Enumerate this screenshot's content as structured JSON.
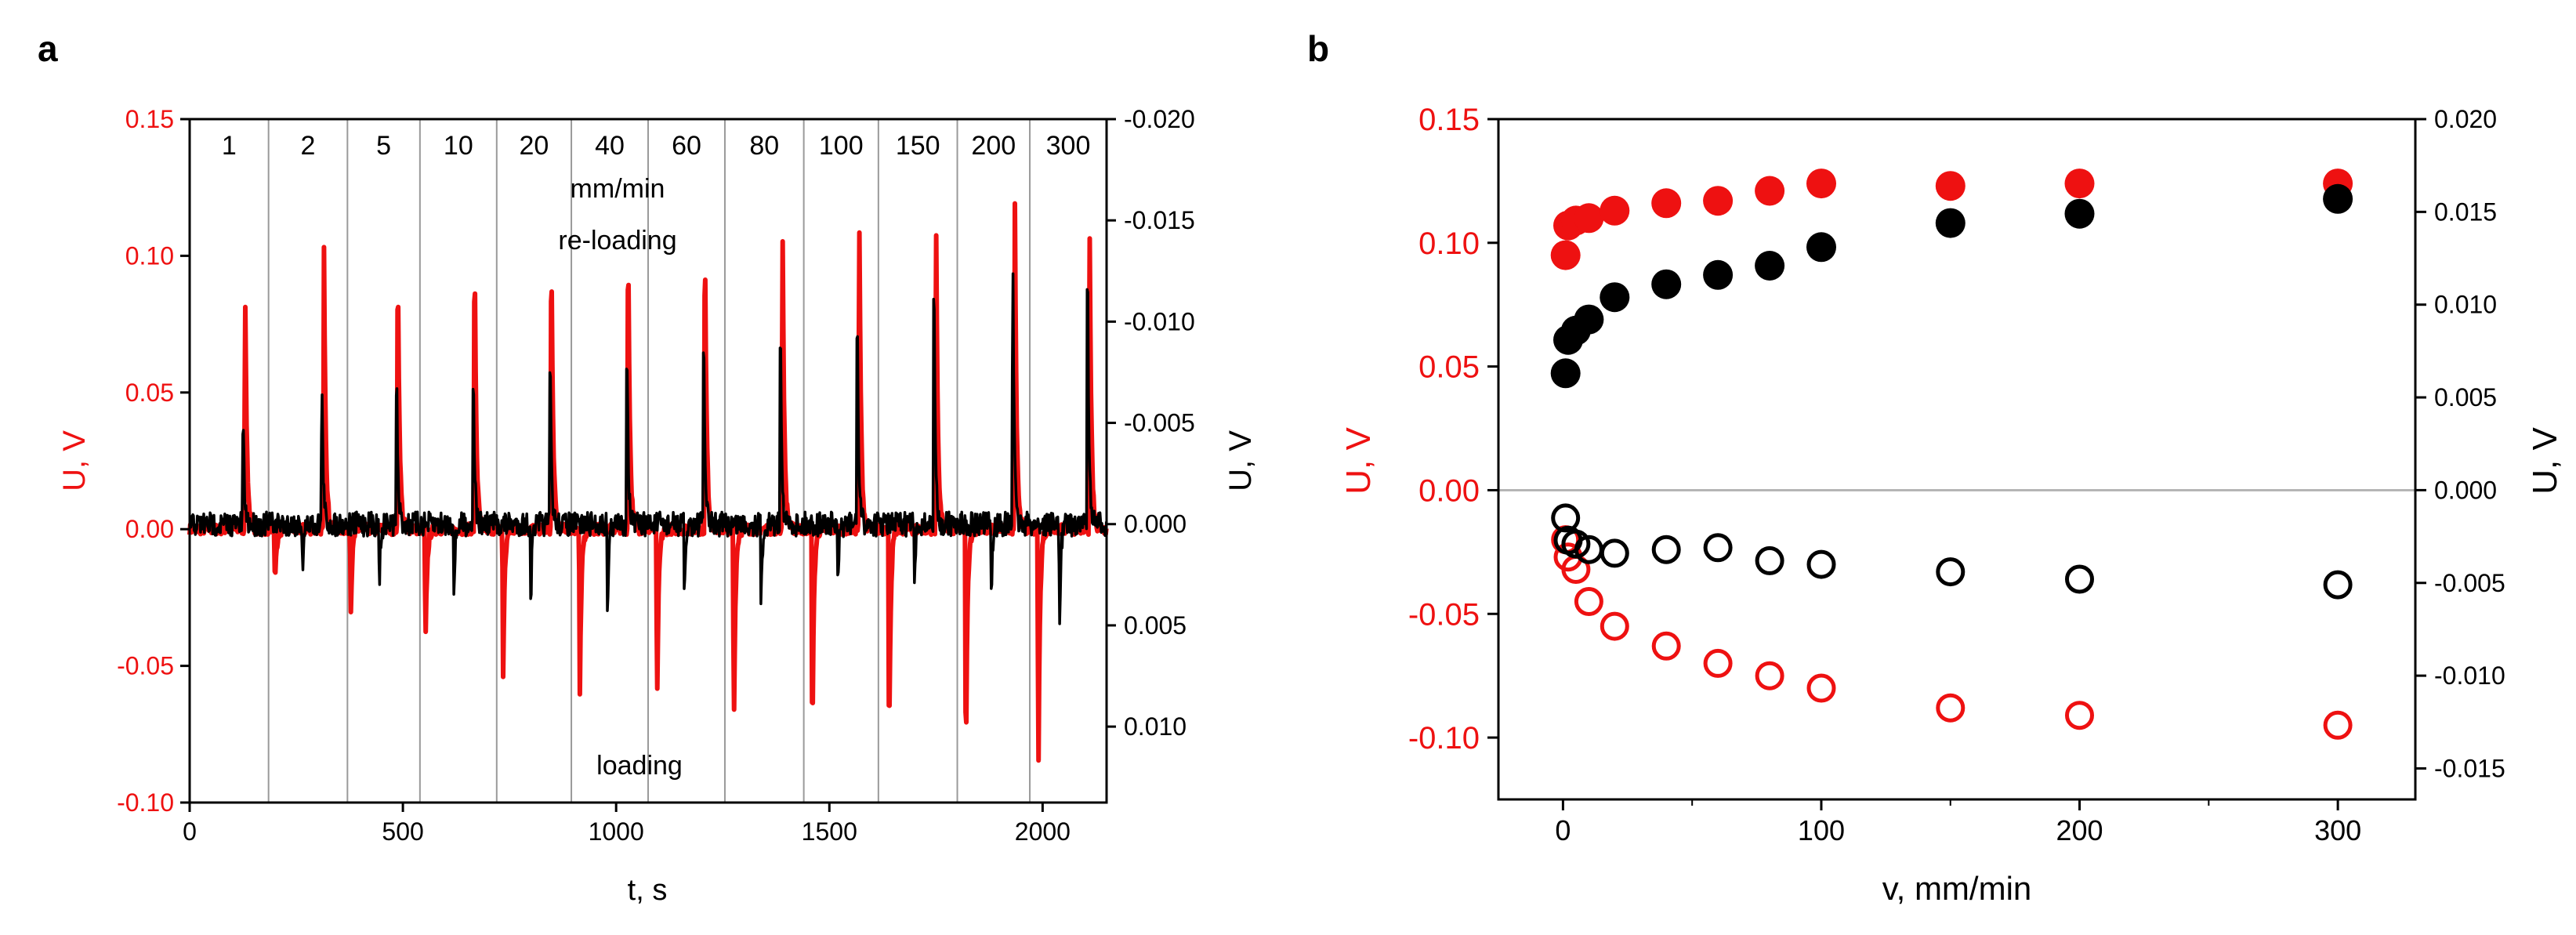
{
  "panels": {
    "a_label": "a",
    "b_label": "b"
  },
  "colors": {
    "red": "#ee1111",
    "black": "#000000",
    "divider": "#9a9a9a",
    "zero_line": "#b5b5b5"
  },
  "chart_data": [
    {
      "type": "line",
      "panel": "a",
      "xlabel": "t, s",
      "ylabel": "U, V",
      "y2label": "U, V",
      "xlim": [
        0,
        2150
      ],
      "ylim": [
        -0.1,
        0.15
      ],
      "y2lim": [
        0.01375,
        -0.02
      ],
      "x_ticks": [
        "0",
        "500",
        "1000",
        "1500",
        "2000"
      ],
      "y_ticks": [
        "-0.10",
        "-0.05",
        "0.00",
        "0.05",
        "0.10",
        "0.15"
      ],
      "y2_ticks": [
        "0.010",
        "0.005",
        "0.000",
        "-0.005",
        "-0.010",
        "-0.015",
        "-0.020"
      ],
      "speed_labels": [
        "1",
        "2",
        "5",
        "10",
        "20",
        "40",
        "60",
        "80",
        "100",
        "150",
        "200",
        "300"
      ],
      "divider_times": [
        185,
        370,
        540,
        720,
        895,
        1075,
        1255,
        1440,
        1615,
        1800,
        1970
      ],
      "annotations": {
        "unit": "mm/min",
        "reloading": "re-loading",
        "loading": "loading"
      },
      "series": [
        {
          "color": "red",
          "axis": "left",
          "peak_times": [
            130,
            315,
            488,
            668,
            848,
            1028,
            1208,
            1390,
            1570,
            1750,
            1935,
            2110
          ],
          "peak_values": [
            0.094,
            0.105,
            0.106,
            0.109,
            0.111,
            0.115,
            0.116,
            0.119,
            0.122,
            0.122,
            0.121,
            0.121
          ],
          "trough_times": [
            200,
            378,
            553,
            735,
            915,
            1096,
            1276,
            1460,
            1640,
            1820,
            1990
          ],
          "trough_values": [
            -0.022,
            -0.03,
            -0.045,
            -0.054,
            -0.062,
            -0.069,
            -0.076,
            -0.082,
            -0.087,
            -0.091,
            -0.095
          ]
        },
        {
          "color": "black",
          "axis": "right",
          "peak_times": [
            125,
            310,
            485,
            665,
            845,
            1025,
            1205,
            1385,
            1565,
            1745,
            1930,
            2105
          ],
          "peak_values": [
            -0.0061,
            -0.008,
            -0.0087,
            -0.0093,
            -0.0101,
            -0.011,
            -0.0115,
            -0.0123,
            -0.0129,
            -0.0143,
            -0.0151,
            -0.0159
          ],
          "trough_times": [
            265,
            445,
            620,
            800,
            980,
            1160,
            1340,
            1520,
            1700,
            1880,
            2040
          ],
          "trough_values": [
            0.0025,
            0.003,
            0.004,
            0.0045,
            0.005,
            0.0045,
            0.0045,
            0.004,
            0.0035,
            0.004,
            0.0055
          ]
        }
      ]
    },
    {
      "type": "scatter",
      "panel": "b",
      "xlabel": "v, mm/min",
      "ylabel": "U, V",
      "y2label": "U, V",
      "xlim": [
        -25,
        330
      ],
      "ylim": [
        -0.125,
        0.15
      ],
      "y2lim": [
        -0.01667,
        0.02
      ],
      "x_ticks": [
        "0",
        "100",
        "200",
        "300"
      ],
      "y_ticks": [
        "-0.10",
        "-0.05",
        "0.00",
        "0.05",
        "0.10",
        "0.15"
      ],
      "y2_ticks": [
        "-0.015",
        "-0.010",
        "-0.005",
        "0.000",
        "0.005",
        "0.010",
        "0.015",
        "0.020"
      ],
      "series": [
        {
          "color": "red",
          "fill": "filled",
          "axis": "left",
          "x": [
            1,
            2,
            5,
            10,
            20,
            40,
            60,
            80,
            100,
            150,
            200,
            300
          ],
          "y": [
            0.095,
            0.107,
            0.109,
            0.11,
            0.113,
            0.116,
            0.117,
            0.121,
            0.124,
            0.123,
            0.124,
            0.124
          ]
        },
        {
          "color": "black",
          "fill": "filled",
          "axis": "right",
          "x": [
            1,
            2,
            5,
            10,
            20,
            40,
            60,
            80,
            100,
            150,
            200,
            300
          ],
          "y": [
            0.0063,
            0.0081,
            0.0086,
            0.0092,
            0.0104,
            0.0111,
            0.0116,
            0.0121,
            0.0131,
            0.0144,
            0.0149,
            0.0157
          ]
        },
        {
          "color": "red",
          "fill": "hollow",
          "axis": "left",
          "x": [
            1,
            2,
            5,
            10,
            20,
            40,
            60,
            80,
            100,
            150,
            200,
            300
          ],
          "y": [
            -0.02,
            -0.027,
            -0.032,
            -0.045,
            -0.055,
            -0.063,
            -0.07,
            -0.075,
            -0.08,
            -0.088,
            -0.091,
            -0.095
          ]
        },
        {
          "color": "black",
          "fill": "hollow",
          "axis": "right",
          "x": [
            1,
            2,
            5,
            10,
            20,
            40,
            60,
            80,
            100,
            150,
            200,
            300
          ],
          "y": [
            -0.0015,
            -0.0027,
            -0.0029,
            -0.0032,
            -0.0034,
            -0.0032,
            -0.0031,
            -0.0038,
            -0.004,
            -0.0044,
            -0.0048,
            -0.0051
          ]
        }
      ]
    }
  ]
}
